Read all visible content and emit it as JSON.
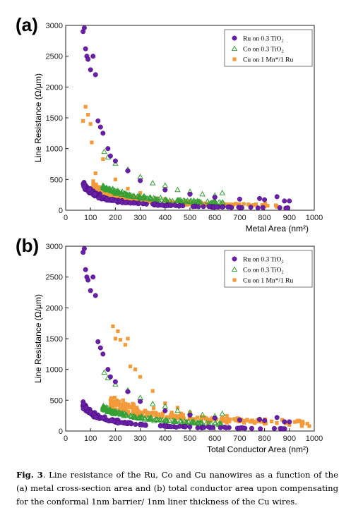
{
  "colors": {
    "ru": "#6a1fa8",
    "co": "#35a035",
    "cu": "#f39a3a"
  },
  "chart_data": [
    {
      "type": "scatter",
      "panel_label": "(a)",
      "xlabel": "Metal Area (nm²)",
      "ylabel": "Line Resistance (Ω/μm)",
      "xlim": [
        0,
        1000
      ],
      "ylim": [
        0,
        3000
      ],
      "xticks": [
        "0",
        "100",
        "200",
        "300",
        "400",
        "500",
        "600",
        "700",
        "800",
        "900",
        "1000"
      ],
      "yticks": [
        "0",
        "500",
        "1000",
        "1500",
        "2000",
        "2500",
        "3000"
      ],
      "legend_position": "top-right",
      "series": [
        {
          "name": "Ru on 0.3 TiO₂",
          "marker": "circle",
          "color": "#6a1fa8",
          "trend": {
            "a": 240000,
            "p": 1.95,
            "xmin": 70,
            "xmax": 900,
            "n": 150,
            "spread": 0.09
          },
          "points": [
            [
              70,
              2900
            ],
            [
              75,
              2960
            ],
            [
              80,
              2620
            ],
            [
              85,
              2500
            ],
            [
              90,
              2450
            ],
            [
              100,
              2280
            ],
            [
              110,
              2500
            ],
            [
              120,
              2200
            ],
            [
              130,
              1450
            ],
            [
              140,
              1350
            ],
            [
              150,
              1250
            ],
            [
              170,
              1000
            ],
            [
              180,
              880
            ],
            [
              200,
              800
            ],
            [
              250,
              640
            ],
            [
              300,
              480
            ],
            [
              400,
              330
            ],
            [
              500,
              260
            ],
            [
              600,
              210
            ],
            [
              700,
              180
            ],
            [
              780,
              190
            ],
            [
              800,
              170
            ],
            [
              850,
              220
            ],
            [
              880,
              150
            ],
            [
              900,
              150
            ]
          ]
        },
        {
          "name": "Co on 0.3 TiO₂",
          "marker": "triangle",
          "color": "#35a035",
          "trend": {
            "a": 230000,
            "p": 1.82,
            "xmin": 150,
            "xmax": 640,
            "n": 140,
            "spread": 0.07
          },
          "points": [
            [
              155,
              950
            ],
            [
              170,
              860
            ],
            [
              200,
              760
            ],
            [
              250,
              660
            ],
            [
              300,
              540
            ],
            [
              350,
              440
            ],
            [
              400,
              400
            ],
            [
              450,
              330
            ],
            [
              500,
              300
            ],
            [
              550,
              260
            ],
            [
              600,
              240
            ],
            [
              630,
              280
            ]
          ]
        },
        {
          "name": "Cu on 1 Mn*/1 Ru",
          "marker": "square",
          "color": "#f39a3a",
          "trend": {
            "a": 120000,
            "p": 1.75,
            "xmin": 110,
            "xmax": 850,
            "n": 200,
            "spread": 0.16
          },
          "points": [
            [
              70,
              1450
            ],
            [
              80,
              1680
            ],
            [
              90,
              1550
            ],
            [
              100,
              1400
            ],
            [
              105,
              1100
            ],
            [
              120,
              600
            ],
            [
              150,
              830
            ],
            [
              200,
              500
            ],
            [
              250,
              350
            ],
            [
              300,
              280
            ],
            [
              400,
              180
            ],
            [
              500,
              120
            ],
            [
              600,
              90
            ],
            [
              700,
              70
            ],
            [
              800,
              60
            ],
            [
              850,
              55
            ]
          ]
        }
      ]
    },
    {
      "type": "scatter",
      "panel_label": "(b)",
      "xlabel": "Total Conductor Area (nm²)",
      "ylabel": "Line Resistance (Ω/μm)",
      "xlim": [
        0,
        1000
      ],
      "ylim": [
        0,
        3000
      ],
      "xticks": [
        "0",
        "100",
        "200",
        "300",
        "400",
        "500",
        "600",
        "700",
        "800",
        "900",
        "1000"
      ],
      "yticks": [
        "0",
        "500",
        "1000",
        "1500",
        "2000",
        "2500",
        "3000"
      ],
      "legend_position": "top-right",
      "series": [
        {
          "name": "Ru on 0.3 TiO₂",
          "marker": "circle",
          "color": "#6a1fa8",
          "trend": {
            "a": 240000,
            "p": 1.95,
            "xmin": 70,
            "xmax": 900,
            "n": 150,
            "spread": 0.09
          },
          "points": [
            [
              70,
              2900
            ],
            [
              75,
              2960
            ],
            [
              80,
              2620
            ],
            [
              85,
              2500
            ],
            [
              90,
              2450
            ],
            [
              100,
              2280
            ],
            [
              110,
              2500
            ],
            [
              120,
              2200
            ],
            [
              130,
              1450
            ],
            [
              140,
              1350
            ],
            [
              150,
              1250
            ],
            [
              170,
              1000
            ],
            [
              180,
              880
            ],
            [
              200,
              800
            ],
            [
              250,
              640
            ],
            [
              300,
              480
            ],
            [
              400,
              330
            ],
            [
              500,
              260
            ],
            [
              600,
              210
            ],
            [
              700,
              180
            ],
            [
              780,
              190
            ],
            [
              800,
              170
            ],
            [
              850,
              220
            ],
            [
              880,
              150
            ],
            [
              900,
              150
            ]
          ]
        },
        {
          "name": "Co on 0.3 TiO₂",
          "marker": "triangle",
          "color": "#35a035",
          "trend": {
            "a": 230000,
            "p": 1.82,
            "xmin": 150,
            "xmax": 640,
            "n": 140,
            "spread": 0.07
          },
          "points": [
            [
              155,
              950
            ],
            [
              170,
              860
            ],
            [
              200,
              760
            ],
            [
              250,
              660
            ],
            [
              300,
              540
            ],
            [
              350,
              440
            ],
            [
              400,
              400
            ],
            [
              450,
              330
            ],
            [
              500,
              300
            ],
            [
              550,
              260
            ],
            [
              600,
              240
            ],
            [
              630,
              280
            ]
          ]
        },
        {
          "name": "Cu on 1 Mn*/1 Ru",
          "marker": "square",
          "color": "#f39a3a",
          "trend": {
            "a": 190000,
            "p": 1.72,
            "xmin": 180,
            "xmax": 980,
            "n": 200,
            "spread": 0.16
          },
          "points": [
            [
              190,
              1700
            ],
            [
              200,
              1500
            ],
            [
              210,
              1620
            ],
            [
              220,
              1480
            ],
            [
              240,
              1400
            ],
            [
              250,
              1500
            ],
            [
              260,
              1050
            ],
            [
              280,
              1000
            ],
            [
              300,
              880
            ],
            [
              350,
              650
            ],
            [
              400,
              450
            ],
            [
              450,
              380
            ],
            [
              500,
              300
            ],
            [
              600,
              210
            ],
            [
              700,
              160
            ],
            [
              800,
              120
            ],
            [
              900,
              100
            ],
            [
              950,
              80
            ],
            [
              980,
              80
            ]
          ]
        }
      ]
    }
  ],
  "caption": {
    "fig_label": "Fig. 3",
    "text": ". Line resistance of the Ru, Co and Cu nanowires as a function of the (a) metal cross-section area and (b) total conductor area upon compensating for the conformal 1nm barrier/ 1nm liner thickness of the Cu wires."
  }
}
